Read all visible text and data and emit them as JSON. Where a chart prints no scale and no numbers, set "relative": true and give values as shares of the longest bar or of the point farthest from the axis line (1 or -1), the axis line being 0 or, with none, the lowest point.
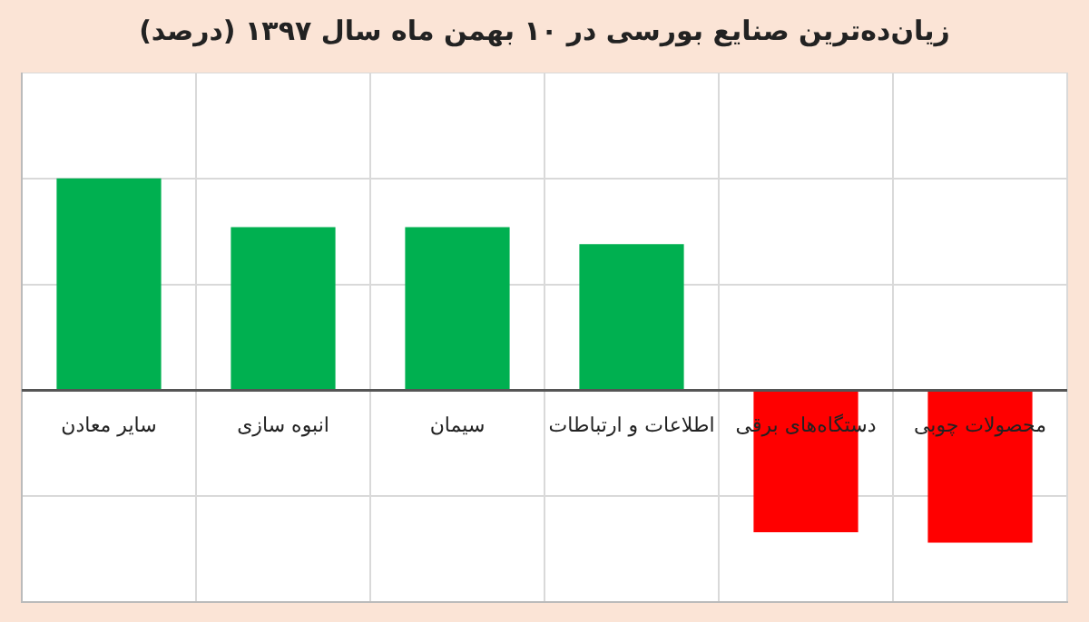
{
  "chart_data": {
    "type": "bar",
    "title": "زیان‌ده‌ترین صنایع بورسی در ۱۰ بهمن ماه سال ۱۳۹۷ (درصد)",
    "categories": [
      "سایر معادن",
      "انبوه سازی",
      "سیمان",
      "اطلاعات و ارتباطات",
      "دستگاه‌های برقی",
      "محصولات چوبی"
    ],
    "values": [
      1,
      0.77,
      0.77,
      0.69,
      -0.67,
      -0.72
    ],
    "colors": [
      "#00b050",
      "#00b050",
      "#00b050",
      "#00b050",
      "#ff0000",
      "#ff0000"
    ],
    "relative": true,
    "grid": true
  }
}
